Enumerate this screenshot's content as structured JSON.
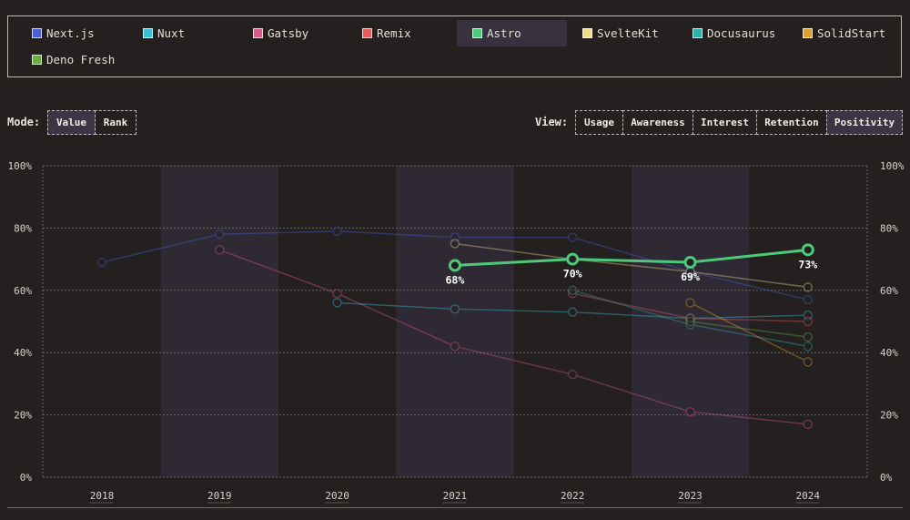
{
  "legend": [
    {
      "label": "Next.js",
      "color": "#4a60d8"
    },
    {
      "label": "Nuxt",
      "color": "#3ac0d8"
    },
    {
      "label": "Gatsby",
      "color": "#d85a8a"
    },
    {
      "label": "Remix",
      "color": "#e85c5c"
    },
    {
      "label": "Astro",
      "color": "#4cc97a",
      "active": true
    },
    {
      "label": "SvelteKit",
      "color": "#f2dc8a"
    },
    {
      "label": "Docusaurus",
      "color": "#2fb0a8"
    },
    {
      "label": "SolidStart",
      "color": "#e0a030"
    },
    {
      "label": "Deno Fresh",
      "color": "#6ab040"
    }
  ],
  "mode": {
    "label": "Mode:",
    "options": [
      {
        "label": "Value",
        "active": true
      },
      {
        "label": "Rank",
        "active": false
      }
    ]
  },
  "view": {
    "label": "View:",
    "options": [
      {
        "label": "Usage",
        "active": false
      },
      {
        "label": "Awareness",
        "active": false
      },
      {
        "label": "Interest",
        "active": false
      },
      {
        "label": "Retention",
        "active": false
      },
      {
        "label": "Positivity",
        "active": true
      }
    ]
  },
  "chart_data": {
    "type": "line",
    "title": "",
    "xlabel": "",
    "ylabel": "",
    "x": [
      "2018",
      "2019",
      "2020",
      "2021",
      "2022",
      "2023",
      "2024"
    ],
    "ylim": [
      0,
      100
    ],
    "yticks": [
      "0%",
      "20%",
      "40%",
      "60%",
      "80%",
      "100%"
    ],
    "highlight": "Astro",
    "series": [
      {
        "name": "Next.js",
        "color": "#4a60d8",
        "values": [
          69,
          78,
          79,
          77,
          77,
          66,
          57
        ]
      },
      {
        "name": "Gatsby",
        "color": "#d85a8a",
        "values": [
          null,
          73,
          59,
          42,
          33,
          21,
          17
        ]
      },
      {
        "name": "Nuxt",
        "color": "#3ac0d8",
        "values": [
          null,
          null,
          56,
          54,
          53,
          51,
          52
        ]
      },
      {
        "name": "SvelteKit",
        "color": "#f2dc8a",
        "values": [
          null,
          null,
          null,
          75,
          70,
          66,
          61
        ]
      },
      {
        "name": "Remix",
        "color": "#e85c5c",
        "values": [
          null,
          null,
          null,
          null,
          59,
          51,
          50
        ]
      },
      {
        "name": "Docusaurus",
        "color": "#2fb0a8",
        "values": [
          null,
          null,
          null,
          null,
          60,
          49,
          42
        ]
      },
      {
        "name": "SolidStart",
        "color": "#e0a030",
        "values": [
          null,
          null,
          null,
          null,
          null,
          56,
          37
        ]
      },
      {
        "name": "Deno Fresh",
        "color": "#6ab040",
        "values": [
          null,
          null,
          null,
          null,
          null,
          50,
          45
        ]
      },
      {
        "name": "Astro",
        "color": "#4cc97a",
        "values": [
          null,
          null,
          null,
          68,
          70,
          69,
          73
        ],
        "labels": [
          "",
          "",
          "",
          "68%",
          "70%",
          "69%",
          "73%"
        ]
      }
    ]
  }
}
